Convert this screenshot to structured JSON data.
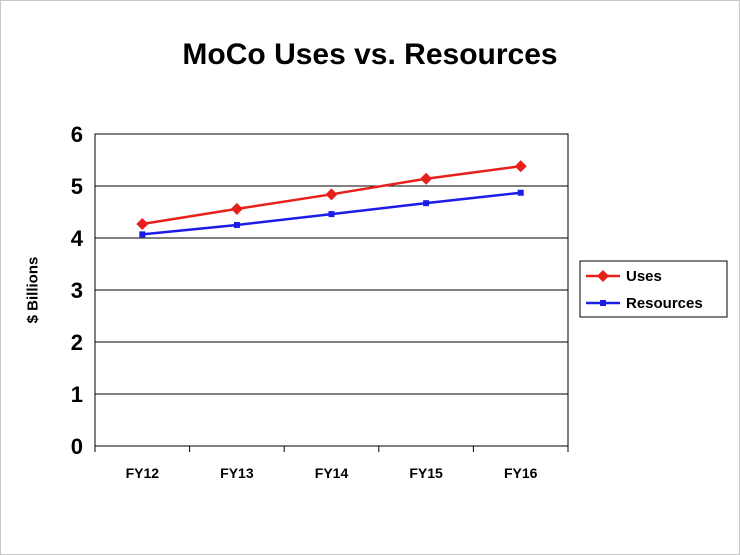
{
  "chart_data": {
    "type": "line",
    "title": "MoCo Uses vs. Resources",
    "xlabel": "",
    "ylabel": "$ Billions",
    "categories": [
      "FY12",
      "FY13",
      "FY14",
      "FY15",
      "FY16"
    ],
    "ylim": [
      0,
      6
    ],
    "yticks": [
      "0",
      "1",
      "2",
      "3",
      "4",
      "5",
      "6"
    ],
    "grid": true,
    "legend_position": "right",
    "series": [
      {
        "name": "Uses",
        "values": [
          4.27,
          4.56,
          4.84,
          5.14,
          5.38
        ],
        "color": "#e8201c",
        "marker": "diamond"
      },
      {
        "name": "Resources",
        "values": [
          4.07,
          4.25,
          4.46,
          4.67,
          4.87
        ],
        "color": "#1c1ce8",
        "marker": "square"
      }
    ]
  }
}
